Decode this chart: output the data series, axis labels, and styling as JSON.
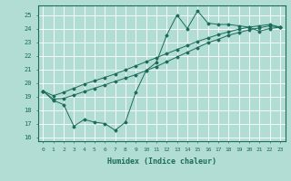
{
  "xlabel": "Humidex (Indice chaleur)",
  "ylabel": "",
  "background_color": "#b2ddd4",
  "line_color": "#1a6b5a",
  "grid_color": "#ffffff",
  "xlim": [
    -0.5,
    23.5
  ],
  "ylim": [
    15.7,
    25.7
  ],
  "xticks": [
    0,
    1,
    2,
    3,
    4,
    5,
    6,
    7,
    8,
    9,
    10,
    11,
    12,
    13,
    14,
    15,
    16,
    17,
    18,
    19,
    20,
    21,
    22,
    23
  ],
  "yticks": [
    16,
    17,
    18,
    19,
    20,
    21,
    22,
    23,
    24,
    25
  ],
  "line1": [
    19.4,
    18.7,
    18.4,
    16.8,
    17.3,
    17.1,
    17.0,
    16.5,
    17.1,
    19.3,
    20.9,
    21.5,
    23.5,
    25.0,
    24.0,
    25.3,
    24.4,
    24.3,
    24.3,
    24.2,
    24.1,
    23.8,
    24.0,
    24.1
  ],
  "line2": [
    19.4,
    18.8,
    18.85,
    19.1,
    19.35,
    19.6,
    19.85,
    20.1,
    20.35,
    20.6,
    20.9,
    21.2,
    21.55,
    21.9,
    22.25,
    22.6,
    22.95,
    23.2,
    23.5,
    23.7,
    23.9,
    24.05,
    24.2,
    24.1
  ],
  "line3": [
    19.4,
    19.05,
    19.3,
    19.6,
    19.9,
    20.15,
    20.4,
    20.65,
    20.95,
    21.25,
    21.55,
    21.85,
    22.15,
    22.45,
    22.75,
    23.05,
    23.3,
    23.55,
    23.75,
    23.95,
    24.1,
    24.2,
    24.3,
    24.1
  ]
}
